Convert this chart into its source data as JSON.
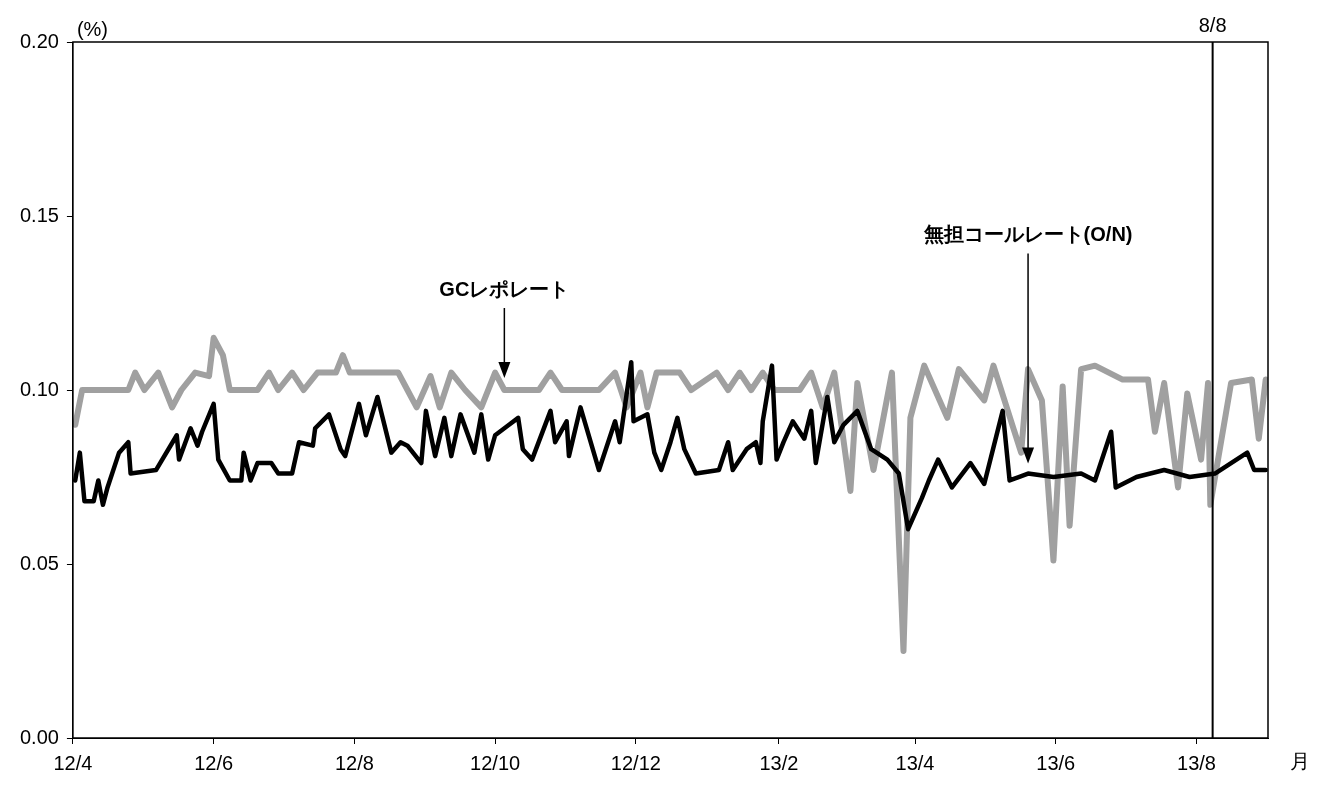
{
  "chart_data": {
    "type": "line",
    "xlabel": "月",
    "ylabel": "(%)",
    "xlim": [
      "2012-04",
      "2013-09"
    ],
    "xticks": [
      {
        "value": "2012-04",
        "label": "12/4"
      },
      {
        "value": "2012-06",
        "label": "12/6"
      },
      {
        "value": "2012-08",
        "label": "12/8"
      },
      {
        "value": "2012-10",
        "label": "12/10"
      },
      {
        "value": "2012-12",
        "label": "12/12"
      },
      {
        "value": "2013-02",
        "label": "13/2"
      },
      {
        "value": "2013-04",
        "label": "13/4"
      },
      {
        "value": "2013-06",
        "label": "13/6"
      },
      {
        "value": "2013-08",
        "label": "13/8"
      }
    ],
    "ylim": [
      0,
      0.2
    ],
    "yticks": [
      {
        "value": 0,
        "label": "0.00"
      },
      {
        "value": 0.05,
        "label": "0.05"
      },
      {
        "value": 0.1,
        "label": "0.10"
      },
      {
        "value": 0.15,
        "label": "0.15"
      },
      {
        "value": 0.2,
        "label": "0.20"
      }
    ],
    "grid": false,
    "legend": false,
    "marker": "none",
    "line_style": "solid",
    "ref_lines": [
      {
        "axis": "x",
        "value": "2013-08-08",
        "label": "8/8",
        "color": "#000000"
      }
    ],
    "series": [
      {
        "name": "GCレポレート",
        "color": "#a0a0a0",
        "x": [
          "2012-04-02",
          "2012-04-05",
          "2012-04-25",
          "2012-04-28",
          "2012-05-02",
          "2012-05-08",
          "2012-05-14",
          "2012-05-18",
          "2012-05-24",
          "2012-05-30",
          "2012-06-01",
          "2012-06-05",
          "2012-06-08",
          "2012-06-20",
          "2012-06-25",
          "2012-06-29",
          "2012-07-05",
          "2012-07-10",
          "2012-07-16",
          "2012-07-24",
          "2012-07-27",
          "2012-07-30",
          "2012-08-20",
          "2012-08-24",
          "2012-08-28",
          "2012-09-03",
          "2012-09-07",
          "2012-09-12",
          "2012-09-18",
          "2012-09-25",
          "2012-10-01",
          "2012-10-05",
          "2012-10-20",
          "2012-10-25",
          "2012-10-30",
          "2012-11-15",
          "2012-11-22",
          "2012-11-27",
          "2012-12-03",
          "2012-12-06",
          "2012-12-10",
          "2012-12-20",
          "2012-12-25",
          "2013-01-05",
          "2013-01-10",
          "2013-01-15",
          "2013-01-20",
          "2013-01-25",
          "2013-01-30",
          "2013-02-10",
          "2013-02-15",
          "2013-02-20",
          "2013-02-25",
          "2013-03-04",
          "2013-03-07",
          "2013-03-14",
          "2013-03-22",
          "2013-03-27",
          "2013-03-30",
          "2013-04-05",
          "2013-04-15",
          "2013-04-20",
          "2013-05-01",
          "2013-05-05",
          "2013-05-17",
          "2013-05-20",
          "2013-05-26",
          "2013-05-31",
          "2013-06-04",
          "2013-06-07",
          "2013-06-12",
          "2013-06-18",
          "2013-06-30",
          "2013-07-11",
          "2013-07-14",
          "2013-07-18",
          "2013-07-24",
          "2013-07-28",
          "2013-08-03",
          "2013-08-06",
          "2013-08-07",
          "2013-08-16",
          "2013-08-25",
          "2013-08-28",
          "2013-08-31"
        ],
        "values": [
          0.09,
          0.1,
          0.1,
          0.105,
          0.1,
          0.105,
          0.095,
          0.1,
          0.105,
          0.104,
          0.115,
          0.11,
          0.1,
          0.1,
          0.105,
          0.1,
          0.105,
          0.1,
          0.105,
          0.105,
          0.11,
          0.105,
          0.105,
          0.1,
          0.095,
          0.104,
          0.095,
          0.105,
          0.1,
          0.095,
          0.105,
          0.1,
          0.1,
          0.105,
          0.1,
          0.1,
          0.105,
          0.095,
          0.105,
          0.095,
          0.105,
          0.105,
          0.1,
          0.105,
          0.1,
          0.105,
          0.1,
          0.105,
          0.1,
          0.1,
          0.105,
          0.095,
          0.105,
          0.071,
          0.102,
          0.077,
          0.105,
          0.025,
          0.092,
          0.107,
          0.092,
          0.106,
          0.097,
          0.107,
          0.082,
          0.106,
          0.097,
          0.051,
          0.101,
          0.061,
          0.106,
          0.107,
          0.103,
          0.103,
          0.088,
          0.102,
          0.072,
          0.099,
          0.08,
          0.102,
          0.067,
          0.102,
          0.103,
          0.086,
          0.103
        ]
      },
      {
        "name": "無担コールレート(O/N)",
        "color": "#000000",
        "x": [
          "2012-04-02",
          "2012-04-04",
          "2012-04-06",
          "2012-04-10",
          "2012-04-12",
          "2012-04-14",
          "2012-04-16",
          "2012-04-21",
          "2012-04-25",
          "2012-04-26",
          "2012-05-07",
          "2012-05-16",
          "2012-05-17",
          "2012-05-22",
          "2012-05-25",
          "2012-05-27",
          "2012-06-01",
          "2012-06-03",
          "2012-06-08",
          "2012-06-13",
          "2012-06-14",
          "2012-06-17",
          "2012-06-20",
          "2012-06-26",
          "2012-06-29",
          "2012-07-05",
          "2012-07-08",
          "2012-07-14",
          "2012-07-15",
          "2012-07-21",
          "2012-07-26",
          "2012-07-28",
          "2012-08-03",
          "2012-08-06",
          "2012-08-11",
          "2012-08-17",
          "2012-08-21",
          "2012-08-24",
          "2012-08-30",
          "2012-09-01",
          "2012-09-05",
          "2012-09-09",
          "2012-09-12",
          "2012-09-16",
          "2012-09-22",
          "2012-09-25",
          "2012-09-28",
          "2012-10-01",
          "2012-10-11",
          "2012-10-13",
          "2012-10-17",
          "2012-10-25",
          "2012-10-27",
          "2012-11-01",
          "2012-11-02",
          "2012-11-07",
          "2012-11-15",
          "2012-11-22",
          "2012-11-24",
          "2012-11-29",
          "2012-11-30",
          "2012-12-06",
          "2012-12-09",
          "2012-12-12",
          "2012-12-16",
          "2012-12-19",
          "2012-12-22",
          "2012-12-27",
          "2013-01-06",
          "2013-01-10",
          "2013-01-12",
          "2013-01-18",
          "2013-01-22",
          "2013-01-24",
          "2013-01-25",
          "2013-01-29",
          "2013-01-31",
          "2013-02-03",
          "2013-02-07",
          "2013-02-12",
          "2013-02-15",
          "2013-02-17",
          "2013-02-22",
          "2013-02-25",
          "2013-03-01",
          "2013-03-07",
          "2013-03-13",
          "2013-03-20",
          "2013-03-25",
          "2013-03-29",
          "2013-04-04",
          "2013-04-07",
          "2013-04-11",
          "2013-04-17",
          "2013-04-25",
          "2013-05-01",
          "2013-05-09",
          "2013-05-12",
          "2013-05-20",
          "2013-05-31",
          "2013-06-12",
          "2013-06-18",
          "2013-06-25",
          "2013-06-27",
          "2013-07-06",
          "2013-07-18",
          "2013-07-29",
          "2013-08-09",
          "2013-08-23",
          "2013-08-26",
          "2013-08-31"
        ],
        "values": [
          0.074,
          0.082,
          0.068,
          0.068,
          0.074,
          0.067,
          0.072,
          0.082,
          0.085,
          0.076,
          0.077,
          0.087,
          0.08,
          0.089,
          0.084,
          0.088,
          0.096,
          0.08,
          0.074,
          0.074,
          0.082,
          0.074,
          0.079,
          0.079,
          0.076,
          0.076,
          0.085,
          0.084,
          0.089,
          0.093,
          0.083,
          0.081,
          0.096,
          0.087,
          0.098,
          0.082,
          0.085,
          0.084,
          0.079,
          0.094,
          0.081,
          0.092,
          0.081,
          0.093,
          0.082,
          0.093,
          0.08,
          0.087,
          0.092,
          0.083,
          0.08,
          0.094,
          0.085,
          0.091,
          0.081,
          0.095,
          0.077,
          0.091,
          0.085,
          0.108,
          0.091,
          0.093,
          0.082,
          0.077,
          0.085,
          0.092,
          0.083,
          0.076,
          0.077,
          0.085,
          0.077,
          0.083,
          0.085,
          0.079,
          0.091,
          0.107,
          0.08,
          0.085,
          0.091,
          0.086,
          0.094,
          0.079,
          0.098,
          0.085,
          0.09,
          0.094,
          0.083,
          0.08,
          0.076,
          0.06,
          0.069,
          0.074,
          0.08,
          0.072,
          0.079,
          0.073,
          0.094,
          0.074,
          0.076,
          0.075,
          0.076,
          0.074,
          0.088,
          0.072,
          0.075,
          0.077,
          0.075,
          0.076,
          0.082,
          0.077,
          0.077
        ]
      }
    ]
  }
}
